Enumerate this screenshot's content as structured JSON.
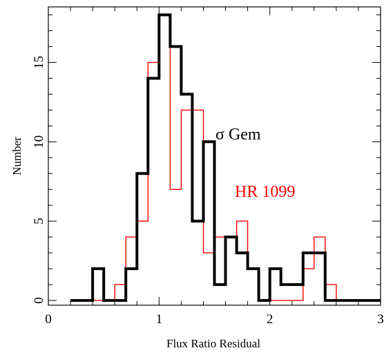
{
  "chart_data": {
    "type": "histogram",
    "xlabel": "Flux Ratio Residual",
    "ylabel": "Number",
    "xlim": [
      0,
      3
    ],
    "ylim": [
      -0.3,
      18.5
    ],
    "xticks": [
      0,
      1,
      2,
      3
    ],
    "xtick_labels": [
      "0",
      "1",
      "2",
      "3"
    ],
    "yticks": [
      0,
      5,
      10,
      15
    ],
    "ytick_labels": [
      "0",
      "5",
      "10",
      "15"
    ],
    "grid": false,
    "bin_edges": [
      0.2,
      0.4,
      0.5,
      0.6,
      0.7,
      0.8,
      0.9,
      1.0,
      1.1,
      1.2,
      1.3,
      1.4,
      1.5,
      1.6,
      1.7,
      1.8,
      1.9,
      2.0,
      2.1,
      2.2,
      2.3,
      2.4,
      2.5,
      2.6,
      2.7,
      3.0
    ],
    "series": [
      {
        "name": "σ Gem",
        "color": "#000000",
        "counts": [
          0,
          2,
          0,
          0,
          2,
          8,
          14,
          18,
          16,
          13,
          5,
          10,
          1,
          4,
          3,
          2,
          0,
          2,
          1,
          1,
          3,
          3,
          0,
          0,
          0
        ]
      },
      {
        "name": "HR 1099",
        "color": "#ff0000",
        "counts": [
          0,
          0,
          0,
          1,
          4,
          5,
          15,
          18,
          7,
          12,
          12,
          3,
          4,
          4,
          5,
          2,
          0,
          0,
          0,
          0,
          2,
          4,
          1,
          0,
          0
        ]
      }
    ]
  }
}
